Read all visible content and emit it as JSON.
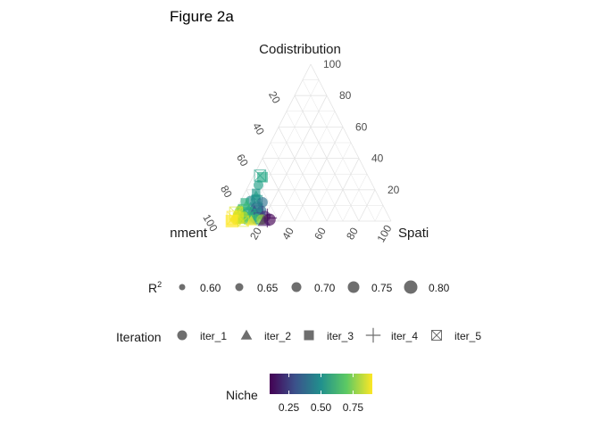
{
  "chart_data": {
    "type": "ternary-scatter",
    "title": "Figure 2a",
    "axes": {
      "top": "Codistribution",
      "right": "Spati",
      "left": "nment"
    },
    "ticks": {
      "top": [
        "100",
        "80",
        "60",
        "40",
        "20"
      ],
      "left": [
        "20",
        "40",
        "60",
        "80",
        "100"
      ],
      "bottom": [
        "20",
        "40",
        "60",
        "80",
        "100"
      ]
    },
    "legend_size": {
      "title": "R",
      "superscript": "2",
      "items": [
        {
          "label": "0.60",
          "value": 0.6
        },
        {
          "label": "0.65",
          "value": 0.65
        },
        {
          "label": "0.70",
          "value": 0.7
        },
        {
          "label": "0.75",
          "value": 0.75
        },
        {
          "label": "0.80",
          "value": 0.8
        }
      ]
    },
    "legend_shape": {
      "title": "Iteration",
      "items": [
        {
          "label": "iter_1",
          "shape": "circle"
        },
        {
          "label": "iter_2",
          "shape": "triangle"
        },
        {
          "label": "iter_3",
          "shape": "square"
        },
        {
          "label": "iter_4",
          "shape": "plus"
        },
        {
          "label": "iter_5",
          "shape": "square-cross"
        }
      ]
    },
    "legend_color": {
      "title": "Niche",
      "ticks": [
        "0.25",
        "0.50",
        "0.75"
      ],
      "tick_values": [
        0.25,
        0.5,
        0.75
      ],
      "range": [
        0.1,
        0.9
      ],
      "colormap": "viridis"
    },
    "points": [
      {
        "codist": 29,
        "spatial": 4,
        "niche": 0.55,
        "r2": 0.74,
        "iter": 5
      },
      {
        "codist": 28,
        "spatial": 6,
        "niche": 0.58,
        "r2": 0.72,
        "iter": 3
      },
      {
        "codist": 23,
        "spatial": 6,
        "niche": 0.55,
        "r2": 0.7,
        "iter": 1
      },
      {
        "codist": 18,
        "spatial": 7,
        "niche": 0.52,
        "r2": 0.66,
        "iter": 3
      },
      {
        "codist": 16,
        "spatial": 8,
        "niche": 0.55,
        "r2": 0.7,
        "iter": 2
      },
      {
        "codist": 14,
        "spatial": 9,
        "niche": 0.5,
        "r2": 0.68,
        "iter": 3
      },
      {
        "codist": 13,
        "spatial": 6,
        "niche": 0.48,
        "r2": 0.7,
        "iter": 1
      },
      {
        "codist": 13,
        "spatial": 10,
        "niche": 0.52,
        "r2": 0.72,
        "iter": 5
      },
      {
        "codist": 12,
        "spatial": 3,
        "niche": 0.6,
        "r2": 0.66,
        "iter": 3
      },
      {
        "codist": 12,
        "spatial": 14,
        "niche": 0.4,
        "r2": 0.72,
        "iter": 1
      },
      {
        "codist": 10,
        "spatial": 5,
        "niche": 0.62,
        "r2": 0.7,
        "iter": 2
      },
      {
        "codist": 10,
        "spatial": 12,
        "niche": 0.45,
        "r2": 0.66,
        "iter": 3
      },
      {
        "codist": 9,
        "spatial": 8,
        "niche": 0.5,
        "r2": 0.68,
        "iter": 2
      },
      {
        "codist": 8,
        "spatial": 2,
        "niche": 0.72,
        "r2": 0.64,
        "iter": 1
      },
      {
        "codist": 8,
        "spatial": 10,
        "niche": 0.35,
        "r2": 0.7,
        "iter": 2
      },
      {
        "codist": 8,
        "spatial": 13,
        "niche": 0.42,
        "r2": 0.72,
        "iter": 3
      },
      {
        "codist": 7,
        "spatial": 5,
        "niche": 0.65,
        "r2": 0.74,
        "iter": 5
      },
      {
        "codist": 7,
        "spatial": 16,
        "niche": 0.38,
        "r2": 0.68,
        "iter": 1
      },
      {
        "codist": 6,
        "spatial": 3,
        "niche": 0.78,
        "r2": 0.74,
        "iter": 1
      },
      {
        "codist": 6,
        "spatial": 8,
        "niche": 0.6,
        "r2": 0.7,
        "iter": 3
      },
      {
        "codist": 6,
        "spatial": 12,
        "niche": 0.3,
        "r2": 0.74,
        "iter": 2
      },
      {
        "codist": 5,
        "spatial": 1,
        "niche": 0.86,
        "r2": 0.78,
        "iter": 5
      },
      {
        "codist": 5,
        "spatial": 6,
        "niche": 0.7,
        "r2": 0.68,
        "iter": 2
      },
      {
        "codist": 5,
        "spatial": 15,
        "niche": 0.45,
        "r2": 0.7,
        "iter": 3
      },
      {
        "codist": 4,
        "spatial": 3,
        "niche": 0.82,
        "r2": 0.72,
        "iter": 1
      },
      {
        "codist": 4,
        "spatial": 10,
        "niche": 0.58,
        "r2": 0.74,
        "iter": 5
      },
      {
        "codist": 4,
        "spatial": 18,
        "niche": 0.25,
        "r2": 0.76,
        "iter": 4
      },
      {
        "codist": 3,
        "spatial": 2,
        "niche": 0.88,
        "r2": 0.76,
        "iter": 2
      },
      {
        "codist": 3,
        "spatial": 7,
        "niche": 0.8,
        "r2": 0.7,
        "iter": 1
      },
      {
        "codist": 3,
        "spatial": 12,
        "niche": 0.6,
        "r2": 0.68,
        "iter": 3
      },
      {
        "codist": 3,
        "spatial": 20,
        "niche": 0.18,
        "r2": 0.74,
        "iter": 1
      },
      {
        "codist": 2,
        "spatial": 1,
        "niche": 0.9,
        "r2": 0.8,
        "iter": 5
      },
      {
        "codist": 2,
        "spatial": 4,
        "niche": 0.85,
        "r2": 0.74,
        "iter": 3
      },
      {
        "codist": 2,
        "spatial": 9,
        "niche": 0.75,
        "r2": 0.72,
        "iter": 2
      },
      {
        "codist": 2,
        "spatial": 14,
        "niche": 0.55,
        "r2": 0.7,
        "iter": 1
      },
      {
        "codist": 2,
        "spatial": 17,
        "niche": 0.3,
        "r2": 0.72,
        "iter": 5
      },
      {
        "codist": 2,
        "spatial": 22,
        "niche": 0.12,
        "r2": 0.78,
        "iter": 4
      },
      {
        "codist": 1,
        "spatial": 3,
        "niche": 0.88,
        "r2": 0.72,
        "iter": 1
      },
      {
        "codist": 1,
        "spatial": 6,
        "niche": 0.82,
        "r2": 0.7,
        "iter": 2
      },
      {
        "codist": 1,
        "spatial": 11,
        "niche": 0.7,
        "r2": 0.7,
        "iter": 3
      },
      {
        "codist": 1,
        "spatial": 16,
        "niche": 0.65,
        "r2": 0.74,
        "iter": 1
      },
      {
        "codist": 1,
        "spatial": 19,
        "niche": 0.78,
        "r2": 0.72,
        "iter": 1
      },
      {
        "codist": 1,
        "spatial": 24,
        "niche": 0.1,
        "r2": 0.76,
        "iter": 1
      },
      {
        "codist": 0,
        "spatial": 1,
        "niche": 0.92,
        "r2": 0.78,
        "iter": 3
      },
      {
        "codist": 0,
        "spatial": 8,
        "niche": 0.86,
        "r2": 0.72,
        "iter": 5
      },
      {
        "codist": 0,
        "spatial": 13,
        "niche": 0.9,
        "r2": 0.7,
        "iter": 2
      },
      {
        "codist": 0,
        "spatial": 21,
        "niche": 0.15,
        "r2": 0.74,
        "iter": 2
      }
    ]
  }
}
